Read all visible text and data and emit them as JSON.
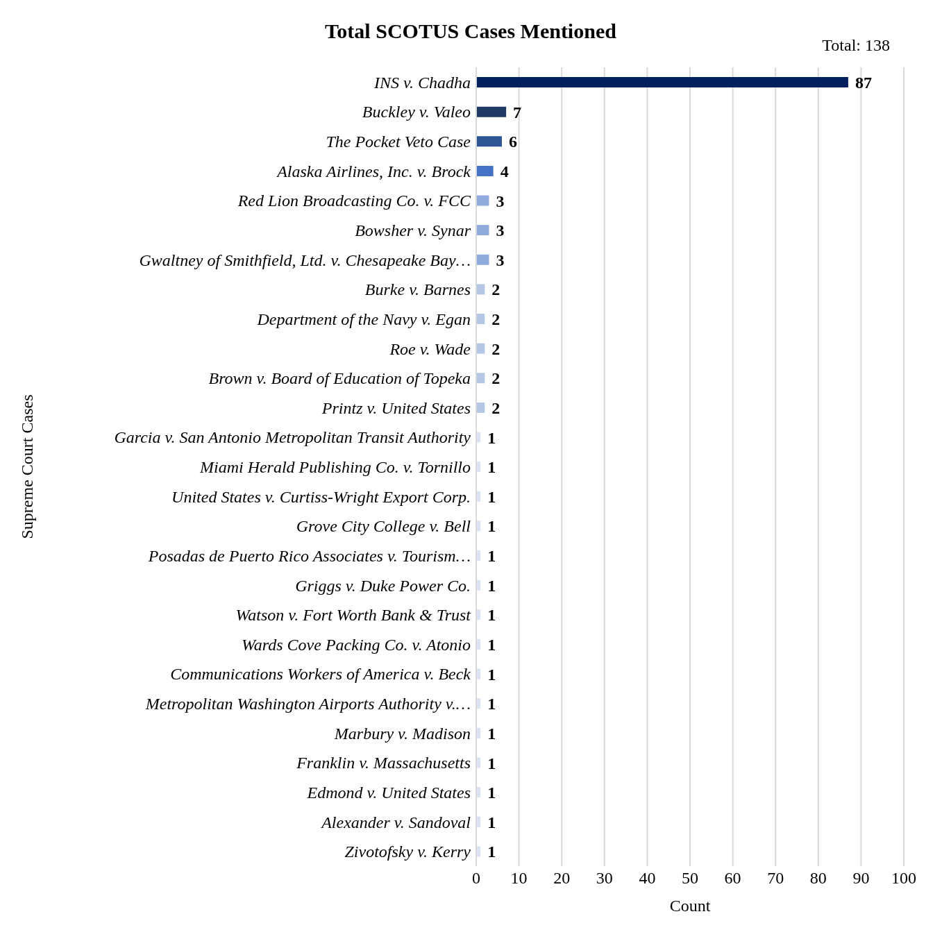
{
  "chart_data": {
    "type": "bar",
    "orientation": "horizontal",
    "title": "Total SCOTUS Cases Mentioned",
    "xlabel": "Count",
    "ylabel": "Supreme Court Cases",
    "annotations": [
      "Total: 138"
    ],
    "categories": [
      "INS v. Chadha",
      "Buckley v. Valeo",
      "The Pocket Veto Case",
      "Alaska Airlines, Inc. v. Brock",
      "Red Lion Broadcasting Co. v. FCC",
      "Bowsher v. Synar",
      "Gwaltney of Smithfield, Ltd. v. Chesapeake Bay…",
      "Burke v. Barnes",
      "Department of the Navy v. Egan",
      "Roe v. Wade",
      "Brown v. Board of Education of Topeka",
      "Printz v. United States",
      "Garcia v. San Antonio Metropolitan Transit Authority",
      "Miami Herald Publishing Co. v. Tornillo",
      "United States v. Curtiss-Wright Export Corp.",
      "Grove City College v. Bell",
      "Posadas de Puerto Rico Associates v. Tourism…",
      "Griggs v. Duke Power Co.",
      "Watson v. Fort Worth Bank & Trust",
      "Wards Cove Packing Co. v. Atonio",
      "Communications Workers of America v. Beck",
      "Metropolitan Washington Airports Authority v.…",
      "Marbury v. Madison",
      "Franklin v. Massachusetts",
      "Edmond v. United States",
      "Alexander v. Sandoval",
      "Zivotofsky v. Kerry"
    ],
    "values": [
      87,
      7,
      6,
      4,
      3,
      3,
      3,
      2,
      2,
      2,
      2,
      2,
      1,
      1,
      1,
      1,
      1,
      1,
      1,
      1,
      1,
      1,
      1,
      1,
      1,
      1,
      1
    ],
    "colors": [
      "#002060",
      "#203864",
      "#2f5597",
      "#4472c4",
      "#8faadc",
      "#8faadc",
      "#8faadc",
      "#b4c7e7",
      "#b4c7e7",
      "#b4c7e7",
      "#b4c7e7",
      "#b4c7e7",
      "#dae3f3",
      "#dae3f3",
      "#dae3f3",
      "#dae3f3",
      "#dae3f3",
      "#dae3f3",
      "#dae3f3",
      "#dae3f3",
      "#dae3f3",
      "#dae3f3",
      "#dae3f3",
      "#dae3f3",
      "#dae3f3",
      "#dae3f3",
      "#dae3f3"
    ],
    "xlim": [
      0,
      100
    ],
    "xticks": [
      0,
      10,
      20,
      30,
      40,
      50,
      60,
      70,
      80,
      90,
      100
    ],
    "grid": "x",
    "data_labels": true
  }
}
